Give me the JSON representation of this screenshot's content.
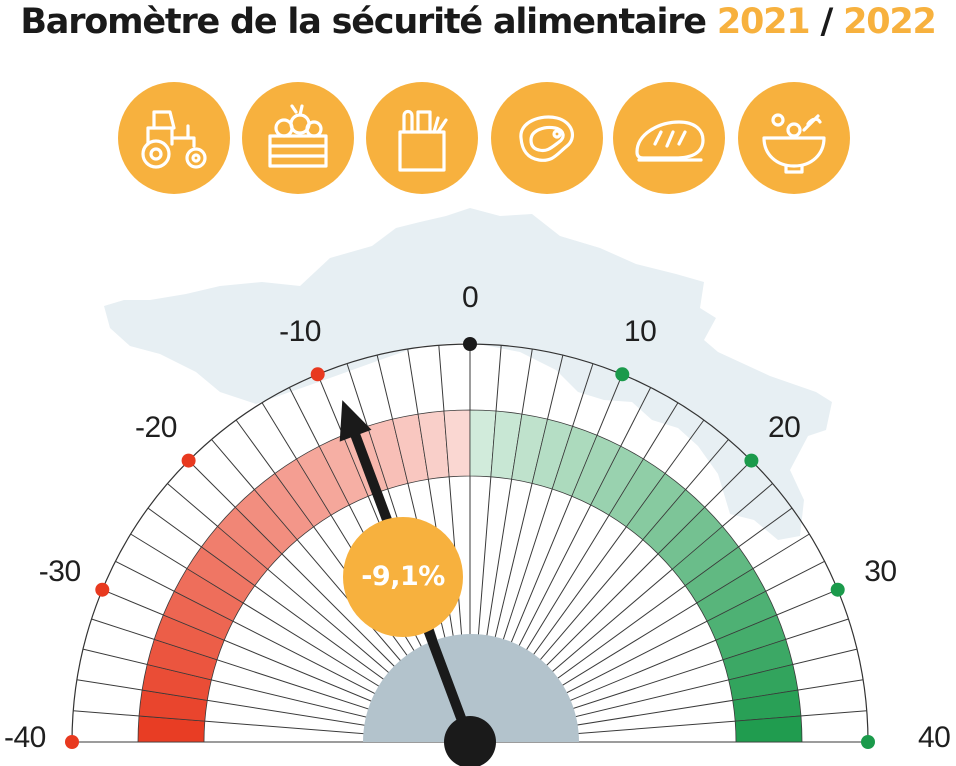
{
  "header": {
    "title_text": "Baromètre de la sécurité alimentaire",
    "year_start": "2021",
    "separator": "/",
    "year_end": "2022"
  },
  "icons": [
    {
      "name": "tractor-icon"
    },
    {
      "name": "vegetable-crate-icon"
    },
    {
      "name": "grocery-bag-icon"
    },
    {
      "name": "steak-icon"
    },
    {
      "name": "bread-icon"
    },
    {
      "name": "salad-bowl-icon"
    }
  ],
  "gauge": {
    "min": -40,
    "max": 40,
    "major_ticks": [
      {
        "label": "-40",
        "value": -40
      },
      {
        "label": "-30",
        "value": -30
      },
      {
        "label": "-20",
        "value": -20
      },
      {
        "label": "-10",
        "value": -10
      },
      {
        "label": "0",
        "value": 0
      },
      {
        "label": "10",
        "value": 10
      },
      {
        "label": "20",
        "value": 20
      },
      {
        "label": "30",
        "value": 30
      },
      {
        "label": "40",
        "value": 40
      }
    ],
    "needle_value": -9.1,
    "value_label": "-9,1%",
    "colors": {
      "accent": "#f7b13e",
      "negative": "#e8391f",
      "positive": "#1b9a4b",
      "zero": "#1a1a1a",
      "hub": "#b3c3cc",
      "map": "#e7eff3"
    }
  }
}
